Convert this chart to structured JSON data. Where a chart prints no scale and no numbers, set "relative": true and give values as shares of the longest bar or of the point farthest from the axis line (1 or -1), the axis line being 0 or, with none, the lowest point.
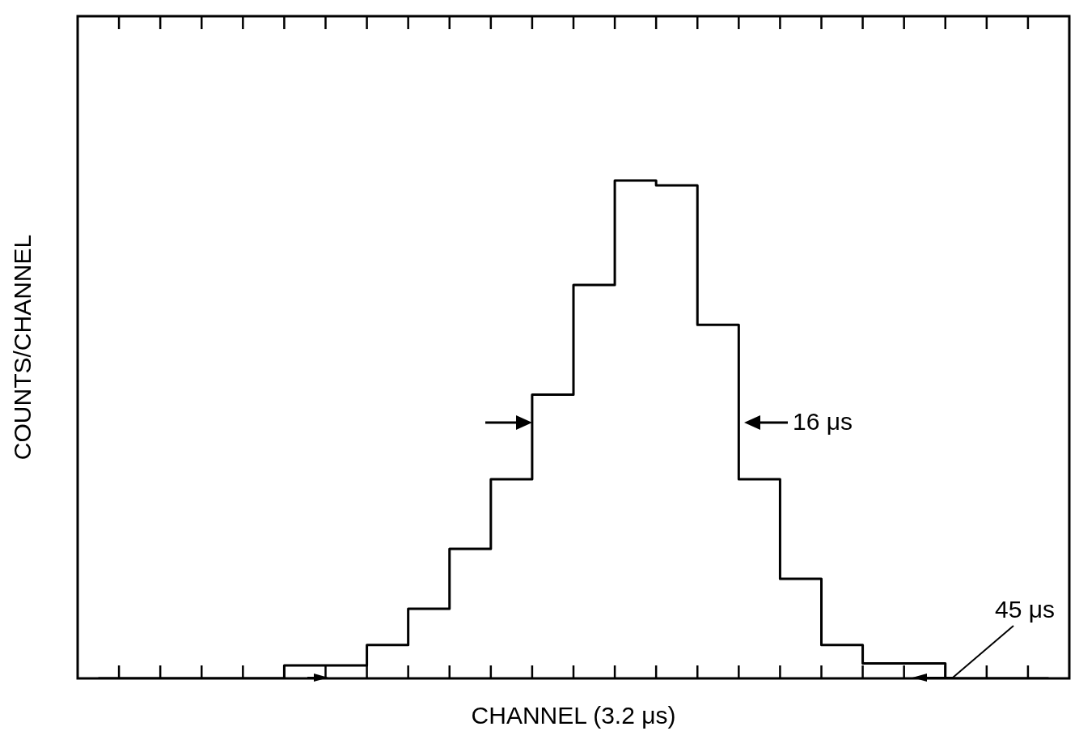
{
  "chart_data": {
    "type": "step",
    "relative": true,
    "xlabel": "CHANNEL (3.2 μs)",
    "ylabel": "COUNTS/CHANNEL",
    "color": "#000000",
    "categories": [
      null,
      null,
      null,
      null,
      null,
      null,
      null,
      null,
      null,
      null,
      null,
      null,
      null,
      null,
      null,
      null,
      null,
      null,
      null,
      null,
      null,
      null,
      null,
      null
    ],
    "values": [
      0,
      0,
      0,
      0,
      0,
      0.026,
      0.026,
      0.067,
      0.14,
      0.26,
      0.4,
      0.57,
      0.79,
      1,
      0.99,
      0.71,
      0.4,
      0.2,
      0.067,
      0.03,
      0.03,
      0,
      0,
      0
    ],
    "annotations": [
      "16 μs",
      "45 μs"
    ]
  }
}
